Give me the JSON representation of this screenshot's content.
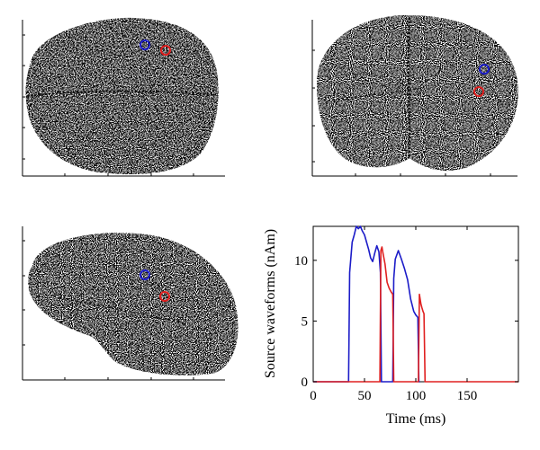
{
  "figure": {
    "panels": [
      {
        "id": "top-view",
        "kind": "brain-scatter"
      },
      {
        "id": "back-view",
        "kind": "brain-scatter"
      },
      {
        "id": "side-view",
        "kind": "brain-scatter"
      }
    ],
    "source_colors": {
      "source_1": "#1c1cc8",
      "source_2": "#e02020"
    }
  },
  "chart_data": {
    "type": "line",
    "title": "",
    "xlabel": "Time (ms)",
    "ylabel": "Source waveforms (nAm)",
    "xlim": [
      0,
      200
    ],
    "ylim": [
      0,
      12.8
    ],
    "xticks": [
      0,
      50,
      100,
      150
    ],
    "yticks": [
      0,
      5,
      10
    ],
    "grid": false,
    "series": [
      {
        "color": "#1c1cc8",
        "x": [
          0,
          34.5,
          35.5,
          38,
          40,
          42,
          44,
          46,
          48,
          50,
          52,
          54,
          56,
          58,
          60,
          62,
          64,
          65.5,
          66.5,
          69,
          72,
          75,
          77.5,
          78.5,
          80,
          83,
          86,
          89,
          92,
          95,
          98,
          100,
          102,
          103,
          104
        ],
        "y": [
          0,
          0,
          9,
          11.5,
          12.1,
          12.8,
          12.6,
          12.8,
          12.4,
          12.1,
          11.5,
          10.9,
          10.2,
          9.9,
          10.6,
          11.2,
          10.7,
          9.0,
          0,
          0,
          0,
          0,
          0,
          8.5,
          10.1,
          10.8,
          10.1,
          9.3,
          8.4,
          6.8,
          5.8,
          5.5,
          5.3,
          0,
          0
        ]
      },
      {
        "color": "#e02020",
        "x": [
          0,
          64,
          65,
          66,
          67,
          68,
          70,
          72,
          74,
          76,
          77.5,
          78.5,
          80,
          100,
          102.5,
          103.5,
          105,
          106,
          107,
          108,
          109,
          200
        ],
        "y": [
          0,
          0,
          0,
          10.8,
          11.1,
          10.6,
          9.7,
          8.2,
          7.7,
          7.4,
          7.2,
          0,
          0,
          0,
          0,
          7.2,
          6.4,
          6.1,
          5.8,
          5.6,
          0,
          0
        ]
      }
    ]
  }
}
